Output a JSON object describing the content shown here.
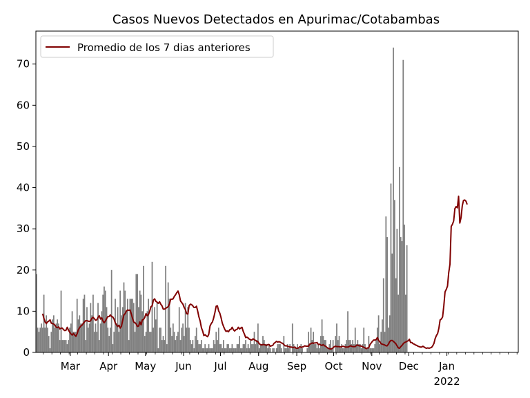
{
  "chart_data": {
    "type": "bar",
    "title": "Casos Nuevos Detectados en Apurimac/Cotabambas",
    "xlabel": "",
    "ylabel": "",
    "xlim": [
      "2021-02-01",
      "2022-02-28"
    ],
    "ylim": [
      0,
      78
    ],
    "yticks": [
      0,
      10,
      20,
      30,
      40,
      50,
      60,
      70
    ],
    "xticks": [
      {
        "date": "2021-03-01",
        "label": "Mar"
      },
      {
        "date": "2021-04-01",
        "label": "Apr"
      },
      {
        "date": "2021-05-01",
        "label": "May"
      },
      {
        "date": "2021-06-01",
        "label": "Jun"
      },
      {
        "date": "2021-07-01",
        "label": "Jul"
      },
      {
        "date": "2021-08-01",
        "label": "Aug"
      },
      {
        "date": "2021-09-01",
        "label": "Sep"
      },
      {
        "date": "2021-10-01",
        "label": "Oct"
      },
      {
        "date": "2021-11-01",
        "label": "Nov"
      },
      {
        "date": "2021-12-01",
        "label": "Dec"
      },
      {
        "date": "2022-01-01",
        "label": "Jan",
        "sublabel": "2022"
      }
    ],
    "grid": false,
    "legend": {
      "placement": "top-left",
      "entries": [
        "Promedio de los 7 dias anteriores"
      ]
    },
    "bars": {
      "color": "#808080",
      "start_date": "2021-02-01",
      "values": [
        19,
        6,
        5,
        6,
        7,
        6,
        14,
        6,
        9,
        6,
        4,
        1,
        5,
        8,
        9,
        6,
        7,
        8,
        7,
        3,
        15,
        3,
        3,
        3,
        3,
        2,
        3,
        6,
        7,
        10,
        5,
        5,
        5,
        13,
        8,
        9,
        7,
        7,
        13,
        14,
        3,
        11,
        6,
        7,
        12,
        9,
        14,
        5,
        7,
        5,
        12,
        3,
        7,
        10,
        14,
        16,
        15,
        11,
        6,
        4,
        6,
        20,
        2,
        5,
        13,
        7,
        11,
        5,
        15,
        9,
        11,
        17,
        15,
        10,
        13,
        3,
        13,
        13,
        13,
        12,
        5,
        19,
        19,
        11,
        15,
        14,
        10,
        21,
        4,
        5,
        10,
        13,
        5,
        5,
        22,
        6,
        11,
        8,
        12,
        1,
        6,
        6,
        3,
        4,
        3,
        21,
        2,
        17,
        13,
        6,
        4,
        7,
        5,
        3,
        4,
        5,
        11,
        3,
        6,
        7,
        4,
        12,
        6,
        11,
        6,
        3,
        2,
        3,
        1,
        4,
        6,
        3,
        2,
        2,
        3,
        1,
        1,
        2,
        1,
        1,
        2,
        1,
        1,
        1,
        3,
        2,
        5,
        3,
        6,
        2,
        2,
        1,
        3,
        1,
        1,
        2,
        2,
        1,
        1,
        2,
        1,
        1,
        1,
        2,
        2,
        4,
        1,
        1,
        2,
        2,
        3,
        1,
        2,
        1,
        3,
        2,
        2,
        5,
        2,
        3,
        7,
        1,
        2,
        2,
        4,
        3,
        2,
        2,
        1,
        2,
        1,
        0,
        1,
        1,
        0,
        1,
        2,
        2,
        2,
        1,
        0,
        4,
        1,
        1,
        2,
        1,
        2,
        0,
        7,
        2,
        1,
        1,
        2,
        1,
        1,
        2,
        1,
        0,
        0,
        0,
        1,
        5,
        2,
        6,
        3,
        5,
        2,
        2,
        1,
        2,
        1,
        4,
        8,
        4,
        3,
        3,
        1,
        1,
        2,
        3,
        1,
        3,
        0,
        4,
        7,
        3,
        4,
        1,
        2,
        1,
        1,
        2,
        3,
        10,
        3,
        3,
        2,
        3,
        2,
        6,
        2,
        3,
        2,
        2,
        1,
        2,
        6,
        2,
        1,
        1,
        4,
        1,
        1,
        1,
        1,
        2,
        3,
        6,
        9,
        2,
        5,
        8,
        18,
        5,
        33,
        28,
        6,
        9,
        41,
        24,
        74,
        37,
        18,
        30,
        14,
        45,
        28,
        27,
        71,
        31,
        14,
        26
      ]
    },
    "series": [
      {
        "name": "Promedio de los 7 dias anteriores",
        "color": "#800000",
        "start_date": "2021-02-06",
        "values": [
          9.4,
          8.3,
          7.4,
          7.0,
          7.4,
          7.6,
          7.9,
          7.1,
          7.0,
          6.9,
          6.6,
          6.1,
          6.0,
          6.2,
          5.7,
          5.9,
          5.9,
          5.5,
          5.3,
          5.4,
          6.1,
          5.4,
          4.9,
          4.5,
          4.2,
          4.6,
          4.2,
          3.9,
          4.5,
          5.5,
          6.0,
          6.4,
          6.6,
          7.0,
          7.4,
          7.7,
          7.7,
          7.6,
          7.5,
          7.7,
          8.3,
          8.5,
          8.2,
          7.8,
          7.9,
          8.5,
          8.9,
          8.1,
          8.4,
          7.6,
          7.2,
          7.6,
          8.2,
          8.7,
          8.7,
          9.1,
          8.7,
          8.6,
          8.1,
          7.2,
          6.7,
          6.3,
          6.6,
          5.9,
          6.3,
          7.7,
          9.1,
          9.4,
          10.0,
          10.3,
          10.2,
          10.3,
          9.4,
          8.3,
          7.4,
          7.2,
          6.9,
          6.3,
          6.4,
          7.4,
          6.7,
          7.9,
          8.0,
          8.5,
          9.4,
          8.9,
          9.2,
          10.0,
          11.1,
          11.3,
          12.7,
          13.0,
          12.4,
          12.2,
          11.9,
          12.3,
          11.7,
          11.3,
          10.5,
          10.5,
          10.7,
          10.9,
          11.1,
          11.7,
          12.9,
          12.9,
          13.0,
          13.6,
          14.0,
          14.5,
          14.9,
          14.0,
          12.5,
          12.1,
          11.7,
          10.9,
          10.4,
          9.4,
          9.3,
          11.3,
          11.7,
          11.6,
          11.3,
          10.9,
          10.9,
          11.2,
          10.0,
          8.6,
          7.6,
          6.0,
          5.2,
          4.1,
          4.3,
          4.0,
          3.8,
          4.4,
          6.4,
          7.0,
          7.4,
          8.4,
          9.7,
          11.2,
          11.3,
          10.1,
          9.5,
          8.4,
          7.1,
          6.3,
          5.6,
          5.1,
          5.2,
          5.0,
          5.5,
          5.6,
          6.1,
          5.5,
          5.2,
          5.5,
          5.6,
          6.1,
          5.7,
          5.9,
          6.1,
          5.1,
          4.4,
          3.6,
          3.7,
          3.5,
          3.2,
          3.1,
          3.0,
          3.3,
          3.1,
          2.9,
          2.7,
          2.6,
          2.1,
          1.9,
          1.8,
          1.9,
          1.9,
          1.8,
          1.7,
          1.9,
          1.9,
          1.5,
          1.6,
          1.7,
          2.2,
          2.4,
          2.7,
          2.5,
          2.6,
          2.5,
          2.3,
          2.2,
          1.9,
          1.6,
          1.6,
          1.5,
          1.4,
          1.3,
          1.3,
          1.2,
          1.2,
          1.3,
          1.0,
          1.0,
          1.1,
          1.4,
          1.2,
          1.3,
          1.4,
          1.6,
          1.5,
          1.5,
          1.5,
          2.0,
          2.1,
          2.3,
          2.2,
          2.3,
          2.3,
          2.4,
          1.9,
          2.0,
          1.8,
          1.7,
          1.9,
          1.6,
          1.5,
          1.2,
          1.0,
          0.9,
          0.8,
          0.9,
          1.1,
          1.4,
          1.5,
          1.4,
          1.4,
          1.4,
          1.3,
          1.4,
          1.5,
          1.4,
          1.3,
          1.3,
          1.3,
          1.4,
          1.6,
          1.5,
          1.4,
          1.4,
          1.4,
          1.7,
          1.8,
          1.6,
          1.6,
          1.5,
          1.4,
          1.2,
          1.1,
          0.9,
          1.1,
          1.1,
          1.9,
          2.3,
          2.7,
          3.0,
          3.0,
          3.1,
          3.6,
          2.9,
          2.6,
          2.1,
          2.0,
          1.9,
          1.8,
          1.6,
          1.6,
          2.0,
          2.6,
          2.9,
          2.9,
          2.7,
          2.4,
          2.1,
          1.6,
          1.1,
          1.0,
          1.4,
          1.7,
          2.1,
          2.4,
          2.5,
          2.7,
          2.8,
          3.2,
          2.4,
          2.4,
          2.1,
          2.0,
          1.8,
          1.7,
          1.5,
          1.4,
          1.3,
          1.3,
          1.5,
          1.3,
          1.1,
          1.0,
          1.1,
          1.0,
          1.1,
          1.2,
          1.6,
          2.2,
          3.4,
          4.1,
          4.6,
          5.9,
          7.9,
          8.1,
          8.6,
          11.3,
          14.7,
          15.3,
          16.1,
          19.4,
          21.4,
          30.6,
          31.1,
          31.9,
          34.9,
          35.4,
          35.1,
          37.9,
          31.4,
          32.7,
          35.6,
          36.9,
          37.0,
          36.7,
          35.9
        ]
      }
    ]
  }
}
